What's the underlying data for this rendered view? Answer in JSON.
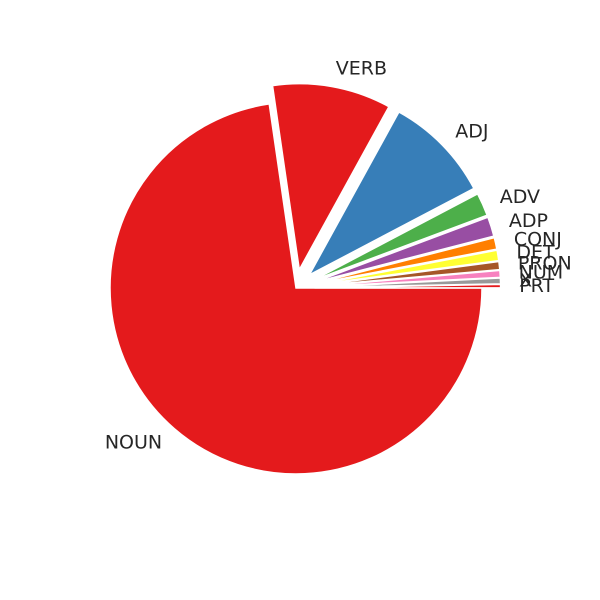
{
  "chart_data": {
    "type": "pie",
    "start_angle_deg": 0,
    "direction": "clockwise",
    "slices": [
      {
        "label": "NOUN",
        "value": 72.7,
        "color": "#e41a1c",
        "exploded": false
      },
      {
        "label": "VERB",
        "value": 10.3,
        "color": "#e41a1c",
        "exploded": true
      },
      {
        "label": "ADJ",
        "value": 9.3,
        "color": "#377eb8",
        "exploded": true
      },
      {
        "label": "ADV",
        "value": 2.0,
        "color": "#4daf4a",
        "exploded": true
      },
      {
        "label": "ADP",
        "value": 1.7,
        "color": "#984ea3",
        "exploded": true
      },
      {
        "label": "CONJ",
        "value": 1.0,
        "color": "#ff7f00",
        "exploded": true
      },
      {
        "label": "DET",
        "value": 0.9,
        "color": "#ffff33",
        "exploded": true
      },
      {
        "label": "PRON",
        "value": 0.7,
        "color": "#a65628",
        "exploded": true
      },
      {
        "label": "NUM",
        "value": 0.6,
        "color": "#f781bf",
        "exploded": true
      },
      {
        "label": "X",
        "value": 0.5,
        "color": "#999999",
        "exploded": true
      },
      {
        "label": "PRT",
        "value": 0.3,
        "color": "#e41a1c",
        "exploded": true
      }
    ]
  }
}
